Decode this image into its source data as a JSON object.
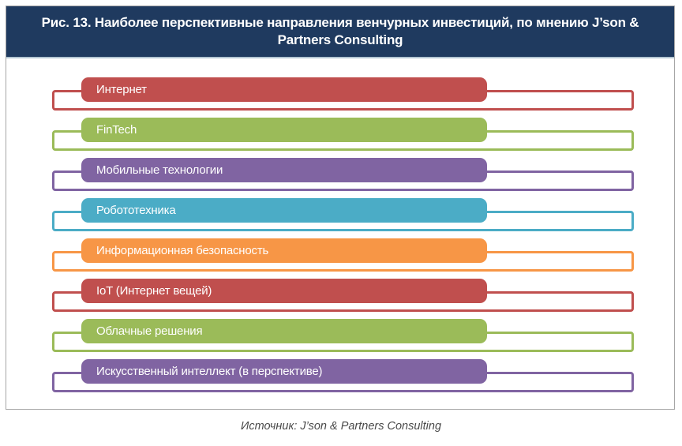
{
  "header": {
    "title": "Рис. 13. Наиболее перспективные направления венчурных инвестиций, по мнению J’son & Partners Consulting"
  },
  "items": [
    {
      "label": "Интернет",
      "color": "#c04f4e"
    },
    {
      "label": "FinTech",
      "color": "#9bbb59"
    },
    {
      "label": "Мобильные технологии",
      "color": "#8064a2"
    },
    {
      "label": "Робототехника",
      "color": "#4bacc6"
    },
    {
      "label": "Информационная безопасность",
      "color": "#f79646"
    },
    {
      "label": "IoT (Интернет вещей)",
      "color": "#c04f4e"
    },
    {
      "label": "Облачные решения",
      "color": "#9bbb59"
    },
    {
      "label": "Искусственный интеллект (в перспективе)",
      "color": "#8064a2"
    }
  ],
  "footer": {
    "source": "Источник: J’son & Partners Consulting"
  },
  "colors": {
    "header_background": "#1f3a5f",
    "figure_border": "#a6a6a6",
    "caption_text": "#4a4a4a"
  }
}
